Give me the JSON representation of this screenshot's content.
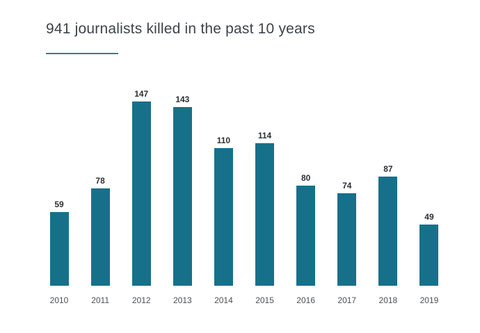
{
  "title": "941 journalists killed in the past 10 years",
  "accent_color": "#2e7f9a",
  "chart_data": {
    "type": "bar",
    "title": "941 journalists killed in the past 10 years",
    "categories": [
      "2010",
      "2011",
      "2012",
      "2013",
      "2014",
      "2015",
      "2016",
      "2017",
      "2018",
      "2019"
    ],
    "values": [
      59,
      78,
      147,
      143,
      110,
      114,
      80,
      74,
      87,
      49
    ],
    "xlabel": "",
    "ylabel": "",
    "ylim": [
      0,
      150
    ],
    "bar_color": "#17708a",
    "value_labels": "above-bars",
    "grid": false,
    "legend_position": "none"
  }
}
